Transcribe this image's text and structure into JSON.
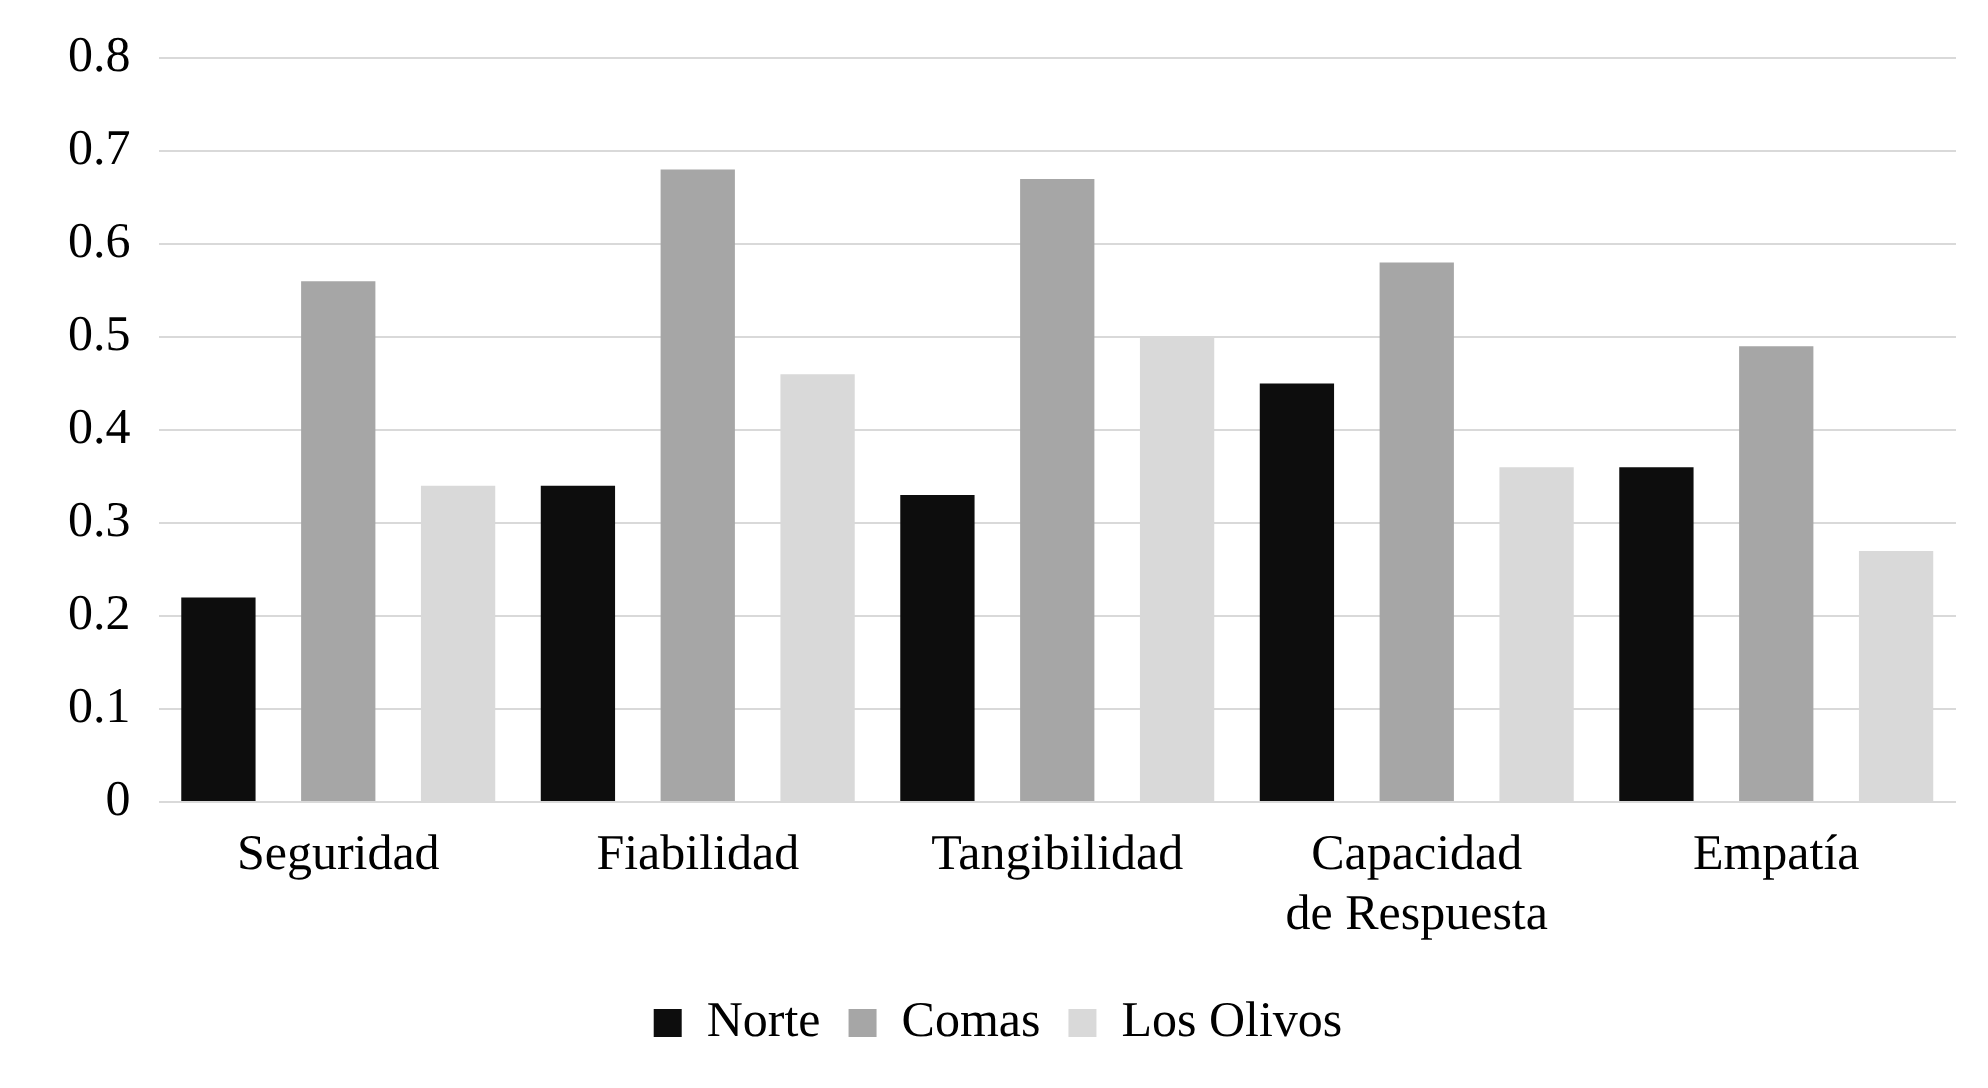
{
  "chart_data": {
    "type": "bar",
    "categories": [
      "Seguridad",
      "Fiabilidad",
      "Tangibilidad",
      "Capacidad de Respuesta",
      "Empatía"
    ],
    "series": [
      {
        "name": "Norte",
        "color": "#0d0d0d",
        "values": [
          0.22,
          0.34,
          0.33,
          0.45,
          0.36
        ]
      },
      {
        "name": "Comas",
        "color": "#a6a6a6",
        "values": [
          0.56,
          0.68,
          0.67,
          0.58,
          0.49
        ]
      },
      {
        "name": "Los Olivos",
        "color": "#d9d9d9",
        "values": [
          0.34,
          0.46,
          0.5,
          0.36,
          0.27
        ]
      }
    ],
    "ylim": [
      0,
      0.8
    ],
    "yticks": [
      0,
      0.1,
      0.2,
      0.3,
      0.4,
      0.5,
      0.6,
      0.7,
      0.8
    ],
    "grid": "y",
    "legend": "bottom"
  }
}
